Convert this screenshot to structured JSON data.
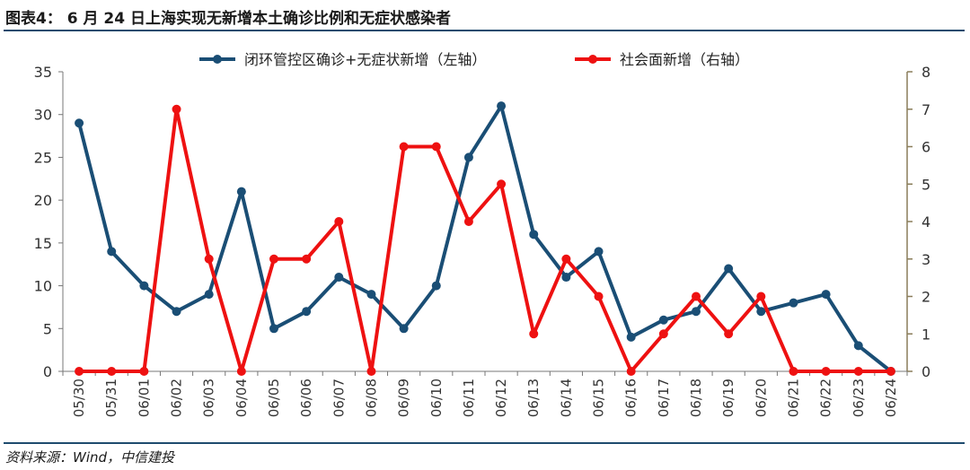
{
  "header": {
    "title": "图表4： 6 月 24 日上海实现无新增本土确诊比例和无症状感染者"
  },
  "footer": {
    "source": "资料来源：Wind，中信建投"
  },
  "colors": {
    "series1": "#1a4e75",
    "series2": "#ee1111",
    "rule": "#1e4b6e",
    "axis_right": "#8a7d5a"
  },
  "chart_data": {
    "type": "line",
    "x": [
      "05/30",
      "05/31",
      "06/01",
      "06/02",
      "06/03",
      "06/04",
      "06/05",
      "06/06",
      "06/07",
      "06/08",
      "06/09",
      "06/10",
      "06/11",
      "06/12",
      "06/13",
      "06/14",
      "06/15",
      "06/16",
      "06/17",
      "06/18",
      "06/19",
      "06/20",
      "06/21",
      "06/22",
      "06/23",
      "06/24"
    ],
    "series": [
      {
        "name": "闭环管控区确诊+无症状新增（左轴）",
        "axis": "left",
        "values": [
          29,
          14,
          10,
          7,
          9,
          21,
          5,
          7,
          11,
          9,
          5,
          10,
          25,
          31,
          16,
          11,
          14,
          4,
          6,
          7,
          12,
          7,
          8,
          9,
          3,
          0
        ]
      },
      {
        "name": "社会面新增（右轴）",
        "axis": "right",
        "values": [
          0,
          0,
          0,
          7,
          3,
          0,
          3,
          3,
          4,
          0,
          6,
          6,
          4,
          5,
          1,
          3,
          2,
          0,
          1,
          2,
          1,
          2,
          0,
          0,
          0,
          0
        ]
      }
    ],
    "y_left": {
      "ylim": [
        0,
        35
      ],
      "ticks": [
        "0",
        "5",
        "10",
        "15",
        "20",
        "25",
        "30",
        "35"
      ]
    },
    "y_right": {
      "ylim": [
        0,
        8
      ],
      "ticks": [
        "0",
        "1",
        "2",
        "3",
        "4",
        "5",
        "6",
        "7",
        "8"
      ]
    },
    "grid": false,
    "legend_position": "top-center"
  }
}
